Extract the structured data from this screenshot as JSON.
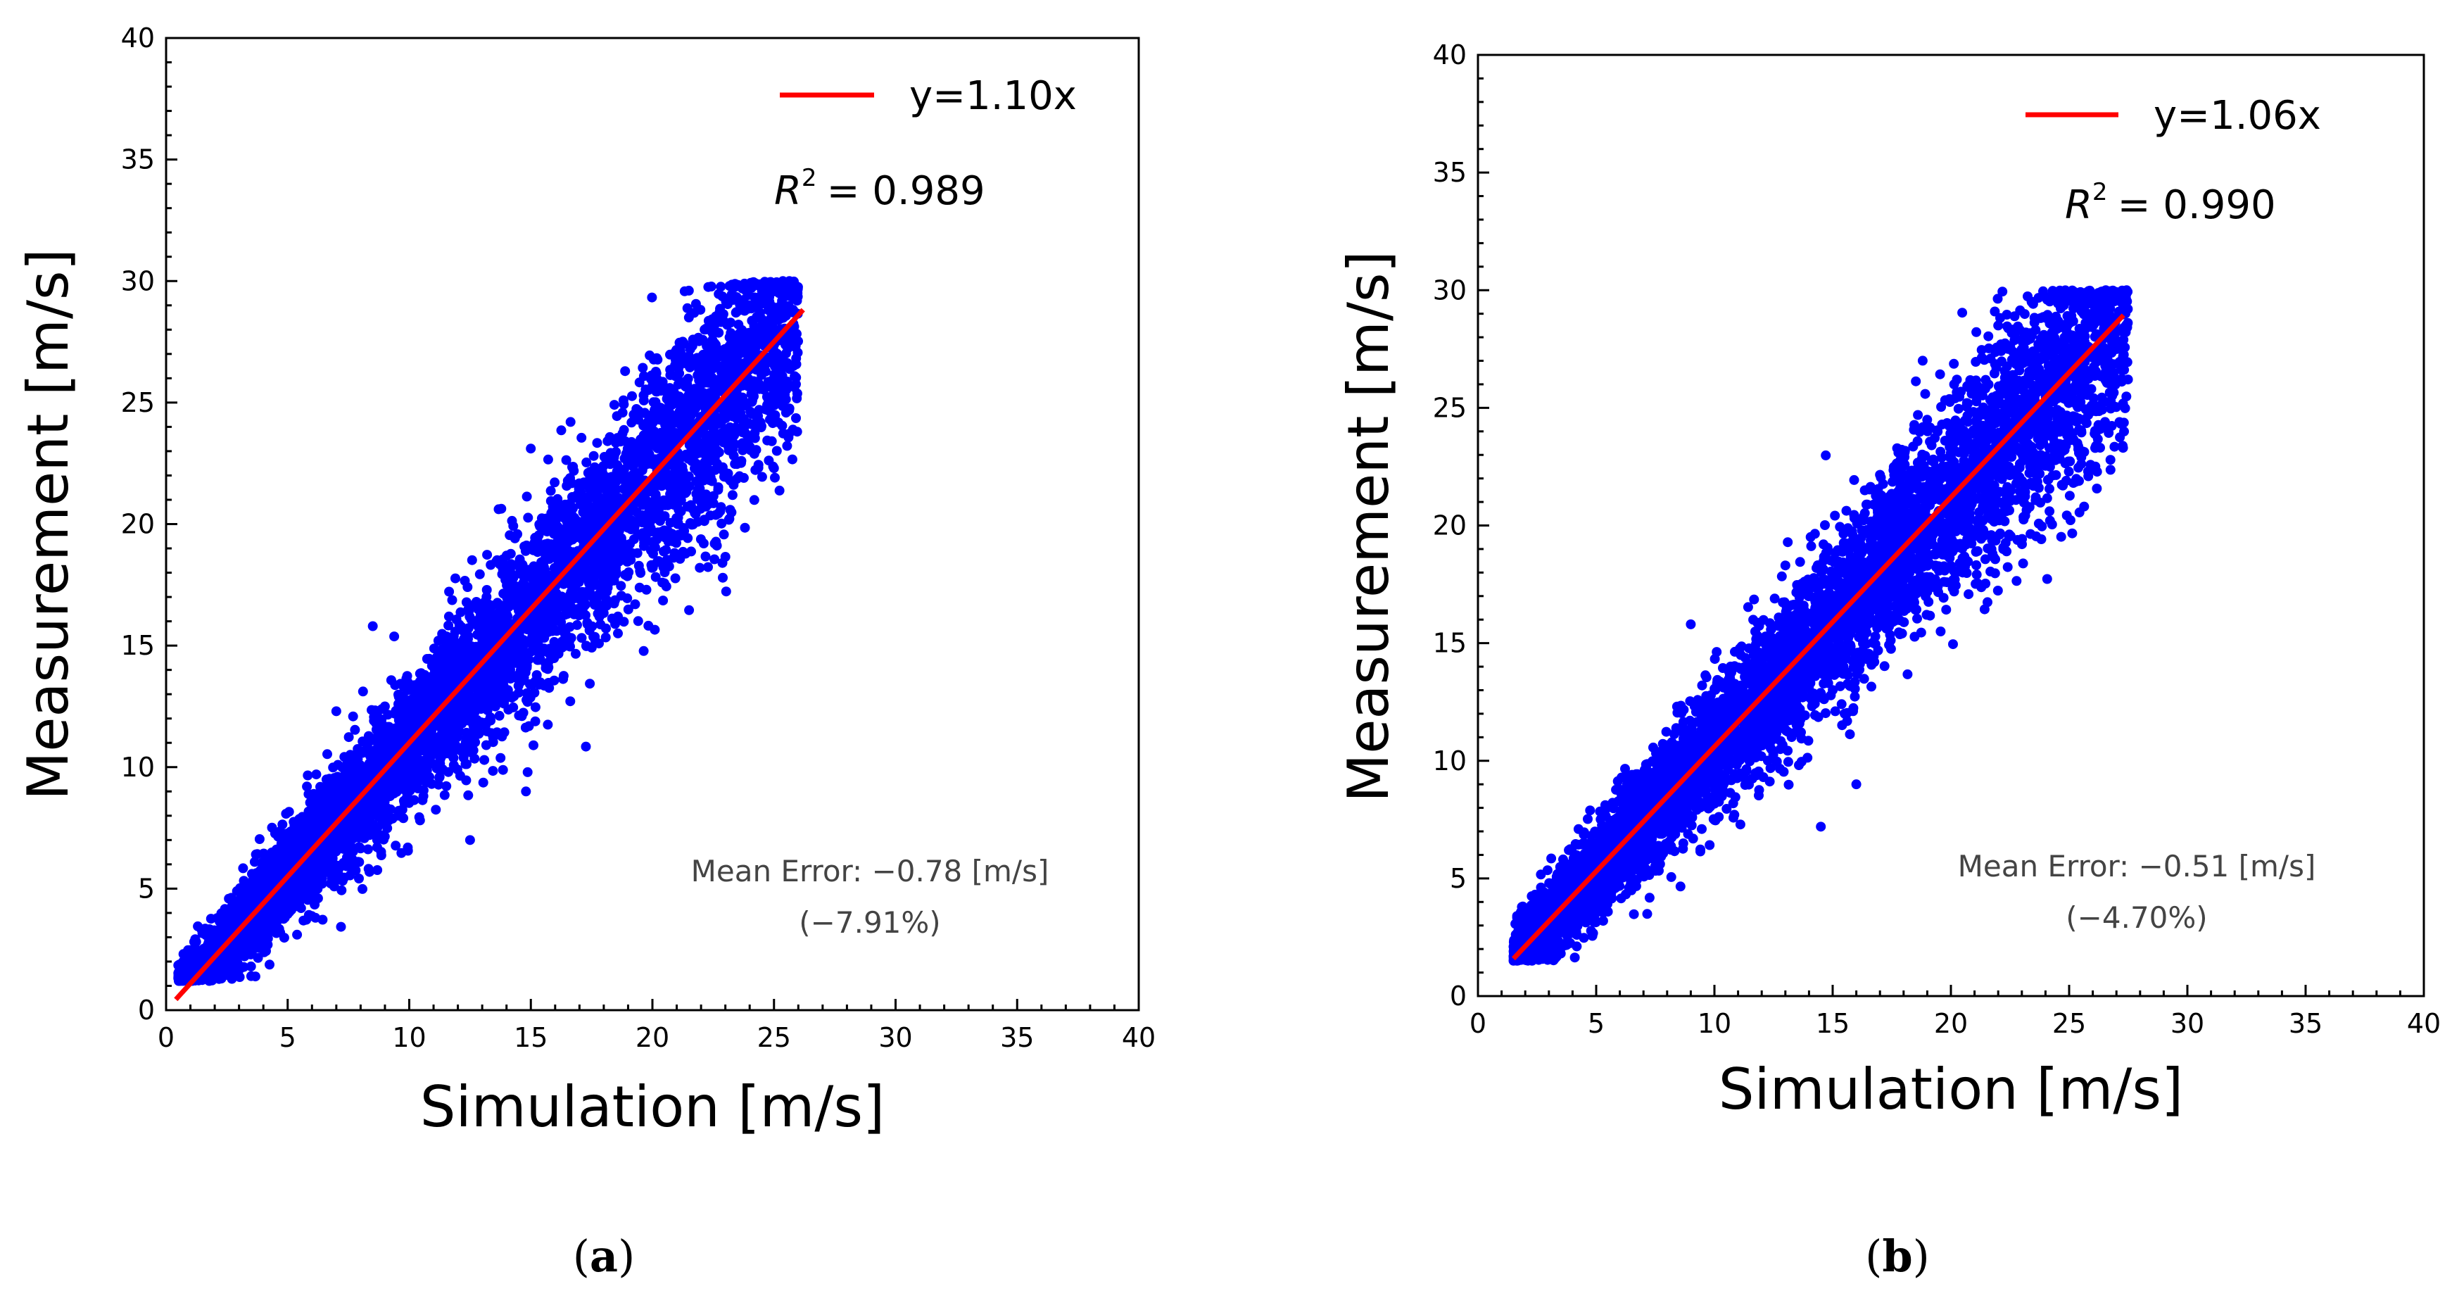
{
  "chart_data": [
    {
      "type": "scatter",
      "panel": "a",
      "caption_letter": "a",
      "xlabel": "Simulation [m/s]",
      "ylabel": "Measurement [m/s]",
      "xlim": [
        0,
        40
      ],
      "ylim": [
        0,
        40
      ],
      "xticks": [
        0,
        5,
        10,
        15,
        20,
        25,
        30,
        35,
        40
      ],
      "yticks": [
        0,
        5,
        10,
        15,
        20,
        25,
        30,
        35,
        40
      ],
      "fit_line": {
        "label": "y=1.10x",
        "slope": 1.1,
        "x_range": [
          0.4,
          26.2
        ],
        "color": "#ff0000"
      },
      "r2_label": "= 0.989",
      "mean_error_line1": "Mean Error: −0.78 [m/s]",
      "mean_error_line2": "(−7.91%)",
      "point_color": "#0000ff",
      "data_x_range": [
        0.5,
        26.0
      ],
      "data_y_min": 1.2,
      "data_y_max": 30.0,
      "outliers": [
        {
          "x": 8.5,
          "y": 15.8
        },
        {
          "x": 7.0,
          "y": 12.3
        },
        {
          "x": 12.5,
          "y": 7.0
        },
        {
          "x": 14.8,
          "y": 9.0
        },
        {
          "x": 25.0,
          "y": 22.3
        },
        {
          "x": 21.5,
          "y": 28.5
        },
        {
          "x": 19.0,
          "y": 21.0
        },
        {
          "x": 3.5,
          "y": 1.4
        }
      ]
    },
    {
      "type": "scatter",
      "panel": "b",
      "caption_letter": "b",
      "xlabel": "Simulation [m/s]",
      "ylabel": "Measurement [m/s]",
      "xlim": [
        0,
        40
      ],
      "ylim": [
        0,
        40
      ],
      "xticks": [
        0,
        5,
        10,
        15,
        20,
        25,
        30,
        35,
        40
      ],
      "yticks": [
        0,
        5,
        10,
        15,
        20,
        25,
        30,
        35,
        40
      ],
      "fit_line": {
        "label": "y=1.06x",
        "slope": 1.06,
        "x_range": [
          1.5,
          27.3
        ],
        "color": "#ff0000"
      },
      "r2_label": "= 0.990",
      "mean_error_line1": "Mean Error: −0.51 [m/s]",
      "mean_error_line2": "(−4.70%)",
      "point_color": "#0000ff",
      "data_x_range": [
        1.5,
        27.5
      ],
      "data_y_min": 1.5,
      "data_y_max": 30.0,
      "outliers": [
        {
          "x": 9.0,
          "y": 15.8
        },
        {
          "x": 14.5,
          "y": 7.2
        },
        {
          "x": 16.0,
          "y": 9.0
        },
        {
          "x": 25.8,
          "y": 22.3
        },
        {
          "x": 22.0,
          "y": 28.5
        },
        {
          "x": 20.5,
          "y": 18.0
        }
      ]
    }
  ]
}
